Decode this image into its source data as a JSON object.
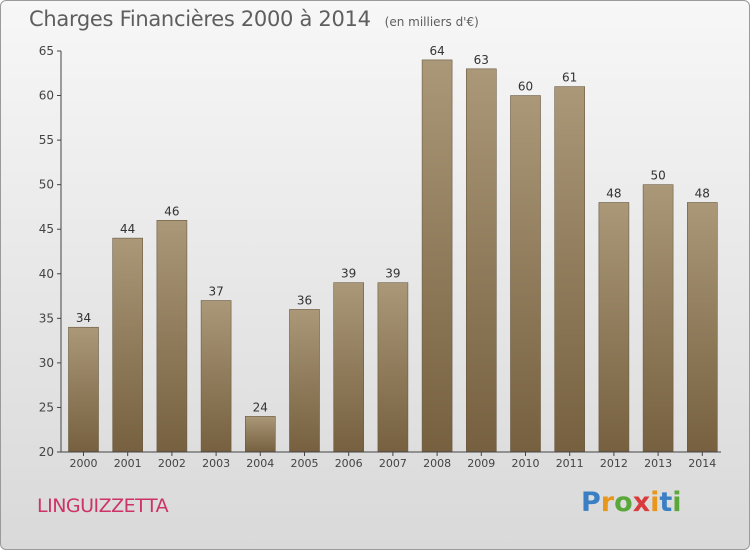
{
  "title": "Charges Financières 2000 à 2014",
  "subtitle": "(en milliers d'€)",
  "commune": "LINGUIZZETTA",
  "logo": "Proxiti",
  "colors": {
    "bar_top": "#aa9878",
    "bar_bottom": "#76603f",
    "label": "#333333",
    "axis": "#444444",
    "commune": "#cc3366"
  },
  "chart_data": {
    "type": "bar",
    "title": "Charges Financières 2000 à 2014",
    "subtitle": "(en milliers d'€)",
    "categories": [
      "2000",
      "2001",
      "2002",
      "2003",
      "2004",
      "2005",
      "2006",
      "2007",
      "2008",
      "2009",
      "2010",
      "2011",
      "2012",
      "2013",
      "2014"
    ],
    "values": [
      34,
      44,
      46,
      37,
      24,
      36,
      39,
      39,
      64,
      63,
      60,
      61,
      48,
      50,
      48
    ],
    "ylim": [
      20,
      65
    ],
    "yticks": [
      20,
      25,
      30,
      35,
      40,
      45,
      50,
      55,
      60,
      65
    ],
    "grid": false
  }
}
